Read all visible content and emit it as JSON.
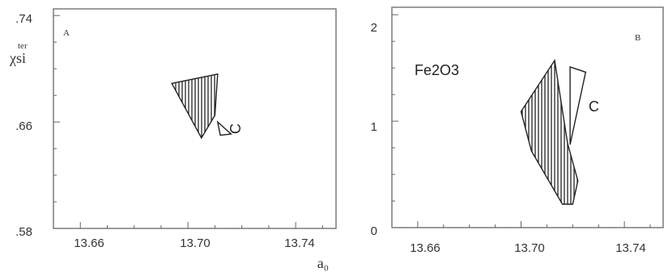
{
  "chart_data": [
    {
      "type": "area",
      "panel_letter": "A",
      "xlabel": "a₀",
      "ylabel": "χsi",
      "ylabel_superscript": "ter",
      "xlim": [
        13.65,
        13.755
      ],
      "ylim": [
        0.58,
        0.745
      ],
      "x_ticks": [
        "13.66",
        "13.70",
        "13.74"
      ],
      "x_tick_values": [
        13.66,
        13.7,
        13.74
      ],
      "y_ticks": [
        ".74",
        ".66",
        ".58"
      ],
      "y_tick_values": [
        0.74,
        0.66,
        0.58
      ],
      "series": [
        {
          "name": "",
          "fill": "hatched",
          "points": [
            [
              13.694,
              0.689
            ],
            [
              13.711,
              0.696
            ],
            [
              13.71,
              0.665
            ],
            [
              13.705,
              0.648
            ]
          ]
        },
        {
          "name": "C",
          "fill": "open",
          "points": [
            [
              13.711,
              0.66
            ],
            [
              13.716,
              0.651
            ],
            [
              13.712,
              0.65
            ]
          ]
        }
      ],
      "annotations": [
        {
          "text": "C",
          "x": 13.718,
          "y": 0.657
        }
      ]
    },
    {
      "type": "area",
      "panel_letter": "B",
      "xlabel": "",
      "ylabel": "",
      "xlim": [
        13.65,
        13.755
      ],
      "ylim": [
        0,
        2.07
      ],
      "x_ticks": [
        "13.66",
        "13.70",
        "13.74"
      ],
      "x_tick_values": [
        13.66,
        13.7,
        13.74
      ],
      "y_ticks": [
        "2",
        "1",
        "0"
      ],
      "y_tick_values": [
        2,
        1,
        0
      ],
      "series": [
        {
          "name": "Fe2O3",
          "fill": "hatched",
          "points": [
            [
              13.7,
              1.09
            ],
            [
              13.713,
              1.57
            ],
            [
              13.718,
              0.79
            ],
            [
              13.722,
              0.44
            ],
            [
              13.72,
              0.22
            ],
            [
              13.716,
              0.22
            ],
            [
              13.704,
              0.72
            ]
          ]
        },
        {
          "name": "C",
          "fill": "open",
          "points": [
            [
              13.719,
              1.51
            ],
            [
              13.725,
              1.46
            ],
            [
              13.719,
              0.78
            ]
          ]
        }
      ],
      "annotations": [
        {
          "text": "Fe2O3",
          "x": 13.659,
          "y": 1.49
        },
        {
          "text": "C",
          "x": 13.727,
          "y": 1.12
        }
      ]
    }
  ]
}
